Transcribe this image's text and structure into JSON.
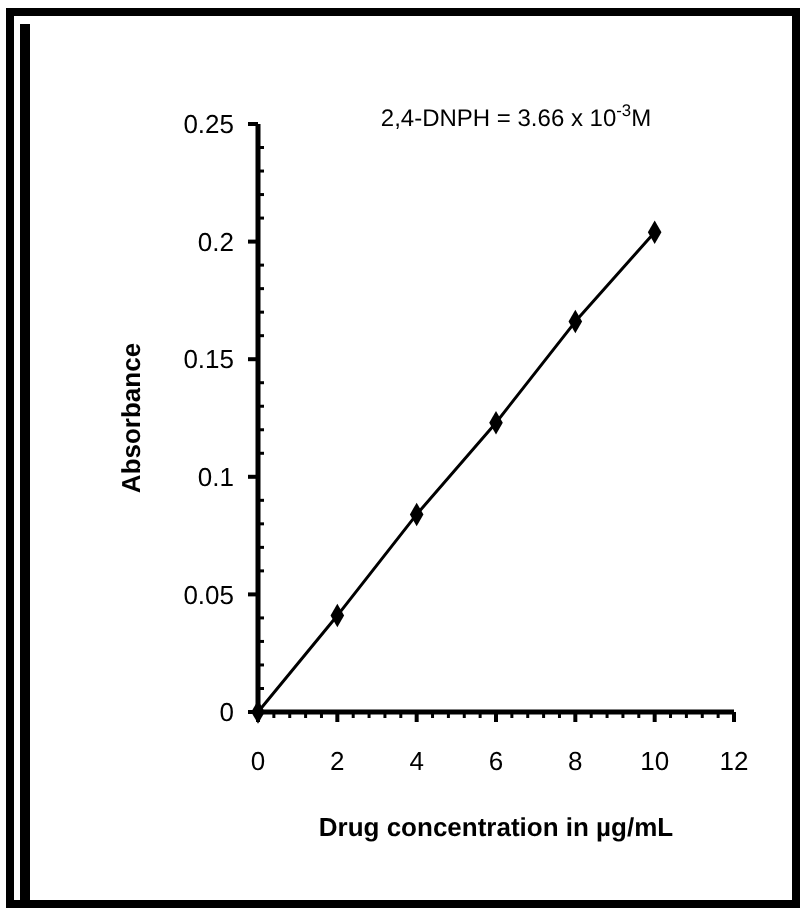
{
  "chart_data": {
    "type": "line",
    "xlabel": "Drug concentration in µg/mL",
    "ylabel": "Absorbance",
    "annotations": [
      "2,4-DNPH = 3.66 x 10$^{-3}$M"
    ],
    "x": [
      0,
      2,
      4,
      6,
      8,
      10
    ],
    "series": [
      {
        "color": "#000000",
        "values": [
          0,
          0.041,
          0.084,
          0.123,
          0.166,
          0.204
        ]
      }
    ],
    "xlim": [
      0,
      12
    ],
    "ylim": [
      0,
      0.25
    ],
    "xticks": [
      0,
      {
        "value": 0.4,
        "label": null
      },
      {
        "value": 0.8,
        "label": null
      },
      {
        "value": 1.2,
        "label": null
      },
      {
        "value": 1.6,
        "label": null
      },
      2,
      {
        "value": 2.4,
        "label": null
      },
      {
        "value": 2.8,
        "label": null
      },
      {
        "value": 3.2,
        "label": null
      },
      {
        "value": 3.6,
        "label": null
      },
      4,
      {
        "value": 4.4,
        "label": null
      },
      {
        "value": 4.8,
        "label": null
      },
      {
        "value": 5.2,
        "label": null
      },
      {
        "value": 5.6,
        "label": null
      },
      6,
      {
        "value": 6.4,
        "label": null
      },
      {
        "value": 6.8,
        "label": null
      },
      {
        "value": 7.2,
        "label": null
      },
      {
        "value": 7.6,
        "label": null
      },
      8,
      {
        "value": 8.4,
        "label": null
      },
      {
        "value": 8.8,
        "label": null
      },
      {
        "value": 9.2,
        "label": null
      },
      {
        "value": 9.6,
        "label": null
      },
      10,
      {
        "value": 10.4,
        "label": null
      },
      {
        "value": 10.8,
        "label": null
      },
      {
        "value": 11.2,
        "label": null
      },
      {
        "value": 11.6,
        "label": null
      },
      12
    ],
    "yticks": [
      0,
      {
        "value": 0.01,
        "label": null
      },
      {
        "value": 0.02,
        "label": null
      },
      {
        "value": 0.03,
        "label": null
      },
      {
        "value": 0.04,
        "label": null
      },
      0.05,
      {
        "value": 0.06,
        "label": null
      },
      {
        "value": 0.07,
        "label": null
      },
      {
        "value": 0.08,
        "label": null
      },
      {
        "value": 0.09,
        "label": null
      },
      0.1,
      {
        "value": 0.11,
        "label": null
      },
      {
        "value": 0.12,
        "label": null
      },
      {
        "value": 0.13,
        "label": null
      },
      {
        "value": 0.14,
        "label": null
      },
      0.15,
      {
        "value": 0.16,
        "label": null
      },
      {
        "value": 0.17,
        "label": null
      },
      {
        "value": 0.18,
        "label": null
      },
      {
        "value": 0.19,
        "label": null
      },
      0.2,
      {
        "value": 0.21,
        "label": null
      },
      {
        "value": 0.22,
        "label": null
      },
      {
        "value": 0.23,
        "label": null
      },
      {
        "value": 0.24,
        "label": null
      },
      0.25
    ],
    "grid": false,
    "marker": "diamond",
    "line_style": "solid"
  }
}
